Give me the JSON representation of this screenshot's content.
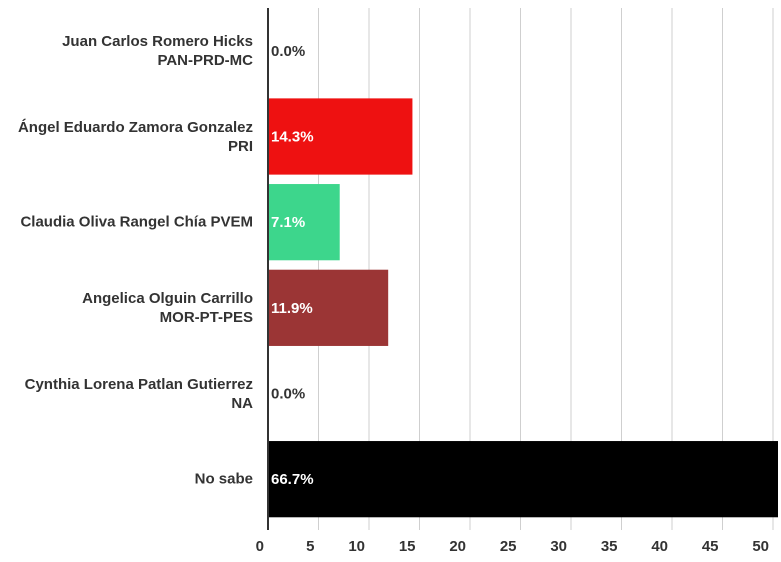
{
  "chart_data": {
    "type": "bar",
    "orientation": "horizontal",
    "categories": [
      "Juan Carlos Romero Hicks\nPAN-PRD-MC",
      "Ángel Eduardo Zamora Gonzalez\nPRI",
      "Claudia Oliva Rangel Chía PVEM",
      "Angelica Olguin Carrillo\nMOR-PT-PES",
      "Cynthia Lorena Patlan Gutierrez\nNA",
      "No sabe"
    ],
    "values": [
      0.0,
      14.3,
      7.1,
      11.9,
      0.0,
      66.7
    ],
    "value_labels": [
      "0.0%",
      "14.3%",
      "7.1%",
      "11.9%",
      "0.0%",
      "66.7%"
    ],
    "colors": [
      null,
      "#ee1111",
      "#3dd68c",
      "#9b3535",
      null,
      "#000000"
    ],
    "xlim": [
      0,
      50
    ],
    "xticks": [
      0,
      5,
      10,
      15,
      20,
      25,
      30,
      35,
      40,
      45,
      50
    ],
    "grid": true
  }
}
